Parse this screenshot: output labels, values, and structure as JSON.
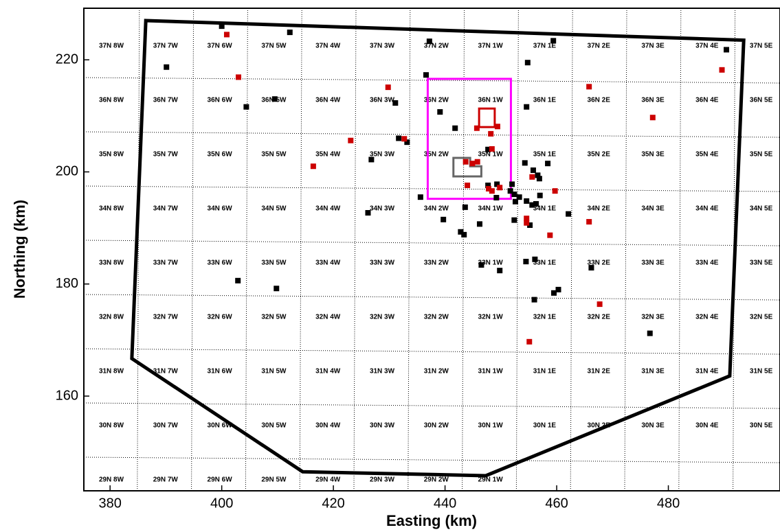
{
  "chart_data": {
    "type": "scatter",
    "xlabel": "Easting (km)",
    "ylabel": "Northing (km)",
    "xlim": [
      375.3,
      500
    ],
    "ylim": [
      143.1,
      229.2
    ],
    "xticks": [
      380,
      400,
      420,
      440,
      460,
      480
    ],
    "yticks": [
      160,
      180,
      200,
      220
    ],
    "series": [
      {
        "color": "#000000",
        "x": [
          400.0,
          412.2,
          437.2,
          459.4,
          490.4,
          390.1,
          454.8,
          436.6,
          404.4,
          409.5,
          431.1,
          454.6,
          439.1,
          441.8,
          431.7,
          433.2,
          426.8,
          447.7,
          454.3,
          458.4,
          455.8,
          456.6,
          456.9,
          452.0,
          449.3,
          447.7,
          451.7,
          452.4,
          453.3,
          435.6,
          449.2,
          457.0,
          454.6,
          455.6,
          456.3,
          452.6,
          426.2,
          462.1,
          439.7,
          446.2,
          452.4,
          455.2,
          443.6,
          442.8,
          443.4,
          449.8,
          446.5,
          454.5,
          456.1,
          466.2,
          402.9,
          409.8,
          456.0,
          459.5,
          460.3,
          476.7
        ],
        "values": [
          226.0,
          224.9,
          223.3,
          223.4,
          221.8,
          218.7,
          219.5,
          217.3,
          211.6,
          213.0,
          212.3,
          211.6,
          210.7,
          207.8,
          206.0,
          205.3,
          202.2,
          204.0,
          201.6,
          201.5,
          200.3,
          199.4,
          198.8,
          197.8,
          197.8,
          197.6,
          196.6,
          196.0,
          195.5,
          195.5,
          195.4,
          195.8,
          194.8,
          194.1,
          194.3,
          194.7,
          192.7,
          192.5,
          191.5,
          190.7,
          191.4,
          190.5,
          193.7,
          189.3,
          188.8,
          182.4,
          183.4,
          184.0,
          184.4,
          182.9,
          180.6,
          179.2,
          177.2,
          178.4,
          179.0,
          171.2
        ]
      },
      {
        "color": "#cc0000",
        "x": [
          400.9,
          403.0,
          429.8,
          465.8,
          489.6,
          477.2,
          432.7,
          423.1,
          416.4,
          445.7,
          449.4,
          448.2,
          448.4,
          443.7,
          445.8,
          444.9,
          444.0,
          447.8,
          449.8,
          448.4,
          455.6,
          459.7,
          454.6,
          454.6,
          458.8,
          465.8,
          467.7,
          455.1
        ],
        "values": [
          224.5,
          216.9,
          215.1,
          215.2,
          218.2,
          209.7,
          205.9,
          205.6,
          201.0,
          207.8,
          208.1,
          206.8,
          204.1,
          201.8,
          201.8,
          201.5,
          197.6,
          197.0,
          197.2,
          196.6,
          199.1,
          196.6,
          191.7,
          190.9,
          188.7,
          191.1,
          176.4,
          169.7
        ]
      }
    ],
    "outlines": [
      {
        "color": "#000000",
        "x": [
          386.4,
          493.5,
          491.0,
          447.3,
          414.5,
          383.9
        ],
        "values": [
          227.0,
          223.5,
          163.6,
          145.8,
          146.5,
          166.7
        ]
      },
      {
        "color": "#ff00ff",
        "x": [
          436.9,
          451.8,
          451.8,
          436.9
        ],
        "values": [
          216.6,
          216.6,
          195.2,
          195.2
        ]
      },
      {
        "color": "#cc0000",
        "x": [
          446.1,
          448.9,
          448.9,
          446.1
        ],
        "values": [
          211.3,
          211.3,
          208.0,
          208.0
        ]
      },
      {
        "color": "#666666",
        "x": [
          441.5,
          444.5,
          444.5,
          446.5,
          446.5,
          441.5
        ],
        "values": [
          202.5,
          202.5,
          201.0,
          201.0,
          199.2,
          199.2
        ]
      }
    ],
    "townships": [
      [
        "37N 8W",
        "37N 7W",
        "37N 6W",
        "37N 5W",
        "37N 4W",
        "37N 3W",
        "37N 2W",
        "37N 1W",
        "37N 1E",
        "37N 2E",
        "37N 3E",
        "37N 4E",
        "37N 5E"
      ],
      [
        "36N 8W",
        "36N 7W",
        "36N 6W",
        "36N 5W",
        "36N 4W",
        "36N 3W",
        "36N 2W",
        "36N 1W",
        "36N 1E",
        "36N 2E",
        "36N 3E",
        "36N 4E",
        "36N 5E"
      ],
      [
        "35N 8W",
        "35N 7W",
        "35N 6W",
        "35N 5W",
        "35N 4W",
        "35N 3W",
        "35N 2W",
        "35N 1W",
        "35N 1E",
        "35N 2E",
        "35N 3E",
        "35N 4E",
        "35N 5E"
      ],
      [
        "34N 8W",
        "34N 7W",
        "34N 6W",
        "34N 5W",
        "34N 4W",
        "34N 3W",
        "34N 2W",
        "34N 1W",
        "34N 1E",
        "34N 2E",
        "34N 3E",
        "34N 4E",
        "34N 5E"
      ],
      [
        "33N 8W",
        "33N 7W",
        "33N 6W",
        "33N 5W",
        "33N 4W",
        "33N 3W",
        "33N 2W",
        "33N 1W",
        "33N 1E",
        "33N 2E",
        "33N 3E",
        "33N 4E",
        "33N 5E"
      ],
      [
        "32N 8W",
        "32N 7W",
        "32N 6W",
        "32N 5W",
        "32N 4W",
        "32N 3W",
        "32N 2W",
        "32N 1W",
        "32N 1E",
        "32N 2E",
        "32N 3E",
        "32N 4E",
        "32N 5E"
      ],
      [
        "31N 8W",
        "31N 7W",
        "31N 6W",
        "31N 5W",
        "31N 4W",
        "31N 3W",
        "31N 2W",
        "31N 1W",
        "31N 1E",
        "31N 2E",
        "31N 3E",
        "31N 4E",
        "31N 5E"
      ],
      [
        "30N 8W",
        "30N 7W",
        "30N 6W",
        "30N 5W",
        "30N 4W",
        "30N 3W",
        "30N 2W",
        "30N 1W",
        "30N 1E",
        "30N 2E",
        "30N 3E",
        "30N 4E",
        "30N 5E"
      ],
      [
        "29N 8W",
        "29N 7W",
        "29N 6W",
        "29N 5W",
        "29N 4W",
        "29N 3W",
        "29N 2W",
        "29N 1W"
      ]
    ]
  }
}
